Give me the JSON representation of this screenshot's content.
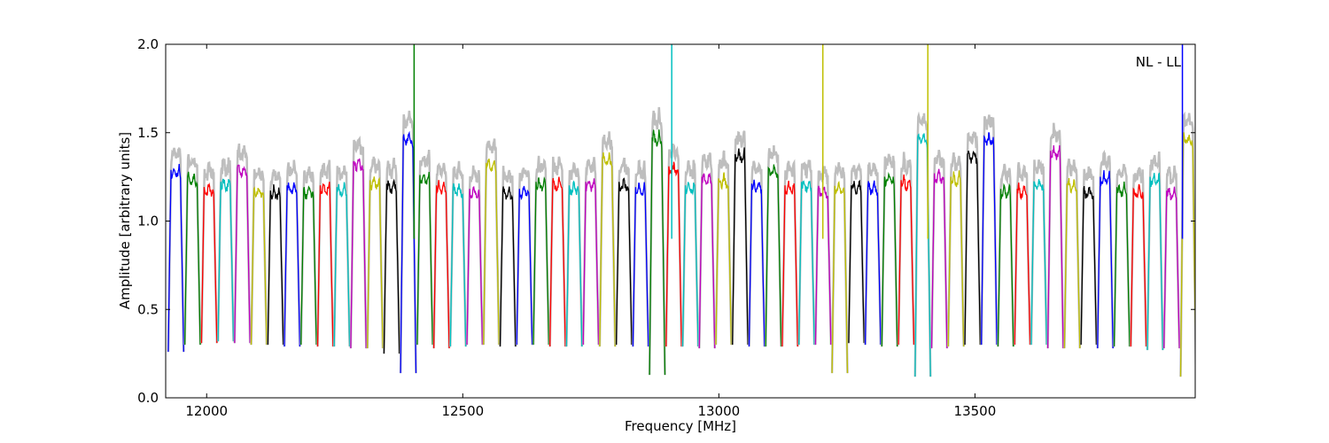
{
  "chart_data": {
    "type": "line",
    "xlabel": "Frequency [MHz]",
    "ylabel": "Amplitude [arbitrary units]",
    "annotation": "NL - LL",
    "xlim": [
      11920,
      13930
    ],
    "ylim": [
      0.0,
      2.0
    ],
    "xticks": [
      12000,
      12500,
      13000,
      13500
    ],
    "yticks": [
      0.0,
      0.5,
      1.0,
      1.5,
      2.0
    ],
    "xtick_labels": [
      "12000",
      "12500",
      "13000",
      "13500"
    ],
    "ytick_labels": [
      "0.0",
      "0.5",
      "1.0",
      "1.5",
      "2.0"
    ],
    "grid": false,
    "background_color": "#bebebe",
    "color_cycle": [
      "#0000ff",
      "#008000",
      "#ff0000",
      "#00bfbf",
      "#bf00bf",
      "#bfbf00",
      "#000000"
    ],
    "channel_start": 11925,
    "channel_spacing": 32.4,
    "channel_count": 62,
    "channel_peaks": [
      1.31,
      1.27,
      1.21,
      1.24,
      1.32,
      1.2,
      1.19,
      1.22,
      1.2,
      1.22,
      1.21,
      1.36,
      1.25,
      1.23,
      1.5,
      1.28,
      1.22,
      1.21,
      1.2,
      1.35,
      1.19,
      1.2,
      1.24,
      1.24,
      1.22,
      1.24,
      1.38,
      1.24,
      1.21,
      1.5,
      1.33,
      1.22,
      1.27,
      1.26,
      1.4,
      1.23,
      1.32,
      1.22,
      1.24,
      1.2,
      1.22,
      1.22,
      1.22,
      1.27,
      1.25,
      1.5,
      1.29,
      1.27,
      1.4,
      1.5,
      1.2,
      1.2,
      1.24,
      1.42,
      1.23,
      1.2,
      1.27,
      1.21,
      1.2,
      1.27,
      1.19,
      1.5
    ],
    "channel_dips": [
      0.26,
      0.3,
      0.31,
      0.32,
      0.31,
      0.3,
      0.3,
      0.29,
      0.3,
      0.29,
      0.29,
      0.28,
      0.28,
      0.25,
      0.14,
      0.3,
      0.28,
      0.29,
      0.3,
      0.3,
      0.29,
      0.3,
      0.3,
      0.29,
      0.29,
      0.3,
      0.29,
      0.3,
      0.29,
      0.13,
      0.29,
      0.29,
      0.28,
      0.3,
      0.3,
      0.29,
      0.29,
      0.29,
      0.3,
      0.3,
      0.14,
      0.31,
      0.3,
      0.29,
      0.3,
      0.12,
      0.28,
      0.29,
      0.3,
      0.3,
      0.29,
      0.3,
      0.3,
      0.28,
      0.28,
      0.3,
      0.28,
      0.29,
      0.29,
      0.27,
      0.28,
      0.12
    ],
    "spikes": [
      {
        "x": 12405,
        "y": 2.0,
        "color": "#008000"
      },
      {
        "x": 12908,
        "y": 2.0,
        "color": "#00bfbf"
      },
      {
        "x": 13203,
        "y": 2.0,
        "color": "#bfbf00"
      },
      {
        "x": 13408,
        "y": 2.0,
        "color": "#bfbf00"
      },
      {
        "x": 13905,
        "y": 2.0,
        "color": "#0000ff"
      }
    ]
  }
}
